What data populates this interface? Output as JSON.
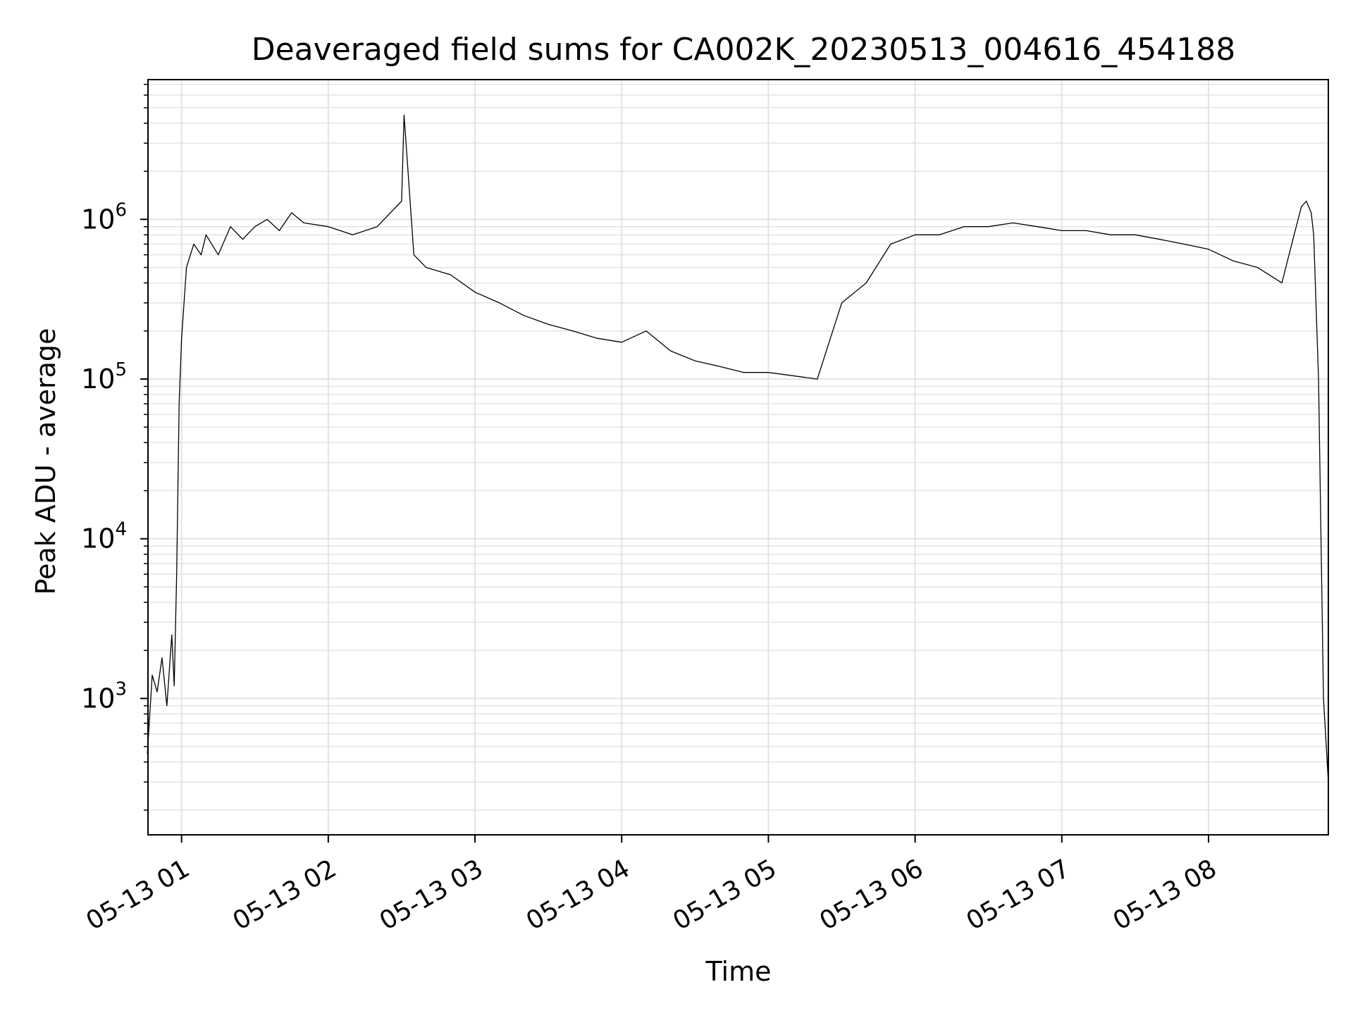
{
  "chart_data": {
    "type": "line",
    "title": "Deaveraged field sums for CA002K_20230513_004616_454188",
    "xlabel": "Time",
    "ylabel": "Peak ADU - average",
    "y_scale": "log",
    "ylim": [
      140,
      7500000
    ],
    "xlim": [
      "2023-05-13 00:46:16",
      "2023-05-13 08:49:00"
    ],
    "grid": true,
    "line_color": "#000000",
    "grid_color": "#e3e3e3",
    "x_ticks": [
      {
        "t": "2023-05-13 01:00",
        "label": "05-13 01"
      },
      {
        "t": "2023-05-13 02:00",
        "label": "05-13 02"
      },
      {
        "t": "2023-05-13 03:00",
        "label": "05-13 03"
      },
      {
        "t": "2023-05-13 04:00",
        "label": "05-13 04"
      },
      {
        "t": "2023-05-13 05:00",
        "label": "05-13 05"
      },
      {
        "t": "2023-05-13 06:00",
        "label": "05-13 06"
      },
      {
        "t": "2023-05-13 07:00",
        "label": "05-13 07"
      },
      {
        "t": "2023-05-13 08:00",
        "label": "05-13 08"
      }
    ],
    "y_ticks": [
      {
        "value": 1000,
        "base": "10",
        "exp": "3"
      },
      {
        "value": 10000,
        "base": "10",
        "exp": "4"
      },
      {
        "value": 100000,
        "base": "10",
        "exp": "5"
      },
      {
        "value": 1000000,
        "base": "10",
        "exp": "6"
      }
    ],
    "series": [
      {
        "x": [
          "2023-05-13 00:46",
          "2023-05-13 00:48",
          "2023-05-13 00:50",
          "2023-05-13 00:52",
          "2023-05-13 00:54",
          "2023-05-13 00:56",
          "2023-05-13 00:57",
          "2023-05-13 00:58",
          "2023-05-13 00:59",
          "2023-05-13 01:00",
          "2023-05-13 01:02",
          "2023-05-13 01:05",
          "2023-05-13 01:08",
          "2023-05-13 01:10",
          "2023-05-13 01:15",
          "2023-05-13 01:20",
          "2023-05-13 01:25",
          "2023-05-13 01:30",
          "2023-05-13 01:35",
          "2023-05-13 01:40",
          "2023-05-13 01:45",
          "2023-05-13 01:50",
          "2023-05-13 02:00",
          "2023-05-13 02:10",
          "2023-05-13 02:20",
          "2023-05-13 02:30",
          "2023-05-13 02:31",
          "2023-05-13 02:35",
          "2023-05-13 02:40",
          "2023-05-13 02:50",
          "2023-05-13 03:00",
          "2023-05-13 03:10",
          "2023-05-13 03:20",
          "2023-05-13 03:30",
          "2023-05-13 03:40",
          "2023-05-13 03:50",
          "2023-05-13 04:00",
          "2023-05-13 04:10",
          "2023-05-13 04:20",
          "2023-05-13 04:30",
          "2023-05-13 04:40",
          "2023-05-13 04:50",
          "2023-05-13 05:00",
          "2023-05-13 05:10",
          "2023-05-13 05:20",
          "2023-05-13 05:30",
          "2023-05-13 05:40",
          "2023-05-13 05:50",
          "2023-05-13 06:00",
          "2023-05-13 06:10",
          "2023-05-13 06:20",
          "2023-05-13 06:30",
          "2023-05-13 06:40",
          "2023-05-13 06:50",
          "2023-05-13 07:00",
          "2023-05-13 07:10",
          "2023-05-13 07:20",
          "2023-05-13 07:30",
          "2023-05-13 07:40",
          "2023-05-13 07:50",
          "2023-05-13 08:00",
          "2023-05-13 08:10",
          "2023-05-13 08:20",
          "2023-05-13 08:30",
          "2023-05-13 08:35",
          "2023-05-13 08:38",
          "2023-05-13 08:40",
          "2023-05-13 08:42",
          "2023-05-13 08:43",
          "2023-05-13 08:45",
          "2023-05-13 08:47",
          "2023-05-13 08:49"
        ],
        "values": [
          450,
          1400,
          1100,
          1800,
          900,
          2500,
          1200,
          6000,
          70000,
          180000,
          500000,
          700000,
          600000,
          800000,
          600000,
          900000,
          750000,
          900000,
          1000000,
          850000,
          1100000,
          950000,
          900000,
          800000,
          900000,
          1300000,
          4500000,
          600000,
          500000,
          450000,
          350000,
          300000,
          250000,
          220000,
          200000,
          180000,
          170000,
          200000,
          150000,
          130000,
          120000,
          110000,
          110000,
          105000,
          100000,
          300000,
          400000,
          700000,
          800000,
          800000,
          900000,
          900000,
          950000,
          900000,
          850000,
          850000,
          800000,
          800000,
          750000,
          700000,
          650000,
          550000,
          500000,
          400000,
          800000,
          1200000,
          1300000,
          1100000,
          800000,
          100000,
          1000,
          300
        ]
      }
    ]
  }
}
